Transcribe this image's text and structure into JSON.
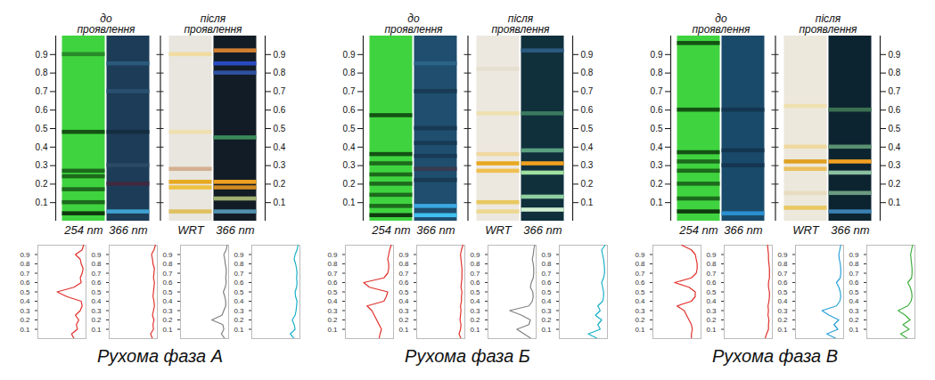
{
  "chart_data": [
    {
      "type": "plate",
      "ylim": [
        0,
        1
      ],
      "yticks": [
        0.1,
        0.2,
        0.3,
        0.4,
        0.5,
        0.6,
        0.7,
        0.8,
        0.9
      ],
      "groups": [
        {
          "label": "до проявлення",
          "lanes": [
            {
              "label": "254 nm",
              "color": "#3fd43f",
              "bands": [
                {
                  "rf": 0.9,
                  "color": "#2a8a2a"
                },
                {
                  "rf": 0.48,
                  "color": "#145214"
                },
                {
                  "rf": 0.27,
                  "color": "#1d6a1d"
                },
                {
                  "rf": 0.24,
                  "color": "#1d6a1d"
                },
                {
                  "rf": 0.17,
                  "color": "#1d6a1d"
                },
                {
                  "rf": 0.1,
                  "color": "#1d6a1d"
                },
                {
                  "rf": 0.04,
                  "color": "#0f3a0f"
                }
              ]
            },
            {
              "label": "366 nm",
              "color": "#1c3c58",
              "bands": [
                {
                  "rf": 0.85,
                  "color": "#2a5a7a"
                },
                {
                  "rf": 0.7,
                  "color": "#2a5070"
                },
                {
                  "rf": 0.48,
                  "color": "#142c40"
                },
                {
                  "rf": 0.3,
                  "color": "#2a4a66"
                },
                {
                  "rf": 0.2,
                  "color": "#402a40"
                },
                {
                  "rf": 0.05,
                  "color": "#3ea0d0"
                }
              ]
            }
          ]
        },
        {
          "label": "після проявлення",
          "lanes": [
            {
              "label": "WRT",
              "color": "#e8e6de",
              "bands": [
                {
                  "rf": 0.9,
                  "color": "#f0dca0"
                },
                {
                  "rf": 0.48,
                  "color": "#efe0b0"
                },
                {
                  "rf": 0.28,
                  "color": "#d4b090"
                },
                {
                  "rf": 0.21,
                  "color": "#e8a820"
                },
                {
                  "rf": 0.18,
                  "color": "#f0c040"
                },
                {
                  "rf": 0.05,
                  "color": "#e0c060"
                }
              ]
            },
            {
              "label": "366 nm",
              "color": "#121c26",
              "bands": [
                {
                  "rf": 0.92,
                  "color": "#d08030"
                },
                {
                  "rf": 0.85,
                  "color": "#2a4ac0"
                },
                {
                  "rf": 0.8,
                  "color": "#3050a0"
                },
                {
                  "rf": 0.45,
                  "color": "#3a8a5a"
                },
                {
                  "rf": 0.21,
                  "color": "#f0a020"
                },
                {
                  "rf": 0.18,
                  "color": "#d08a20"
                },
                {
                  "rf": 0.12,
                  "color": "#a0b070"
                },
                {
                  "rf": 0.05,
                  "color": "#5090b0"
                }
              ]
            }
          ]
        }
      ]
    },
    {
      "type": "line",
      "title": "Рухома фаза А",
      "tick_labels": "x",
      "x": [
        0,
        0.05,
        0.1,
        0.15,
        0.2,
        0.25,
        0.3,
        0.35,
        0.4,
        0.45,
        0.5,
        0.55,
        0.6,
        0.65,
        0.7,
        0.75,
        0.8,
        0.85,
        0.9,
        0.95,
        1
      ],
      "xlim": [
        0,
        1
      ],
      "xticks": [
        0.1,
        0.2,
        0.3,
        0.4,
        0.5,
        0.6,
        0.7,
        0.8,
        0.9
      ],
      "ylim": [
        0,
        100
      ],
      "series": [
        {
          "color": "#e0302a",
          "values": [
            25,
            30,
            18,
            20,
            15,
            22,
            12,
            8,
            10,
            40,
            60,
            25,
            10,
            12,
            8,
            6,
            10,
            12,
            22,
            8,
            5
          ]
        },
        {
          "color": "#e0302a",
          "values": [
            10,
            14,
            8,
            9,
            7,
            10,
            8,
            6,
            7,
            9,
            8,
            7,
            6,
            8,
            7,
            6,
            9,
            10,
            12,
            7,
            4
          ]
        },
        {
          "color": "#808080",
          "values": [
            8,
            15,
            10,
            12,
            35,
            14,
            10,
            6,
            6,
            8,
            11,
            7,
            5,
            6,
            5,
            5,
            7,
            8,
            10,
            5,
            3
          ]
        },
        {
          "color": "#18b0c8",
          "values": [
            12,
            20,
            10,
            12,
            16,
            10,
            8,
            7,
            6,
            9,
            10,
            7,
            6,
            7,
            6,
            7,
            9,
            12,
            10,
            6,
            4
          ]
        }
      ]
    },
    {
      "type": "plate",
      "ylim": [
        0,
        1
      ],
      "yticks": [
        0.1,
        0.2,
        0.3,
        0.4,
        0.5,
        0.6,
        0.7,
        0.8,
        0.9
      ],
      "groups": [
        {
          "label": "до проявлення",
          "lanes": [
            {
              "label": "254 nm",
              "color": "#3fd43f",
              "bands": [
                {
                  "rf": 0.57,
                  "color": "#145214"
                },
                {
                  "rf": 0.36,
                  "color": "#145214"
                },
                {
                  "rf": 0.31,
                  "color": "#1d6a1d"
                },
                {
                  "rf": 0.25,
                  "color": "#1d6a1d"
                },
                {
                  "rf": 0.2,
                  "color": "#1d6a1d"
                },
                {
                  "rf": 0.14,
                  "color": "#1d6a1d"
                },
                {
                  "rf": 0.08,
                  "color": "#1d6a1d"
                },
                {
                  "rf": 0.03,
                  "color": "#0f3a0f"
                }
              ]
            },
            {
              "label": "366 nm",
              "color": "#1f4e6e",
              "bands": [
                {
                  "rf": 0.85,
                  "color": "#2c6488"
                },
                {
                  "rf": 0.7,
                  "color": "#183a54"
                },
                {
                  "rf": 0.5,
                  "color": "#183a54"
                },
                {
                  "rf": 0.42,
                  "color": "#183a54"
                },
                {
                  "rf": 0.35,
                  "color": "#183a54"
                },
                {
                  "rf": 0.28,
                  "color": "#3a3a50"
                },
                {
                  "rf": 0.22,
                  "color": "#183a54"
                },
                {
                  "rf": 0.08,
                  "color": "#3aa8e0"
                },
                {
                  "rf": 0.03,
                  "color": "#40c0f0"
                }
              ]
            }
          ]
        },
        {
          "label": "після проявлення",
          "lanes": [
            {
              "label": "WRT",
              "color": "#ece8e0",
              "bands": [
                {
                  "rf": 0.82,
                  "color": "#e6e0d0"
                },
                {
                  "rf": 0.58,
                  "color": "#efe0b0"
                },
                {
                  "rf": 0.36,
                  "color": "#f0d8a0"
                },
                {
                  "rf": 0.31,
                  "color": "#e8a820"
                },
                {
                  "rf": 0.27,
                  "color": "#f0c050"
                },
                {
                  "rf": 0.1,
                  "color": "#e8c860"
                },
                {
                  "rf": 0.05,
                  "color": "#ecd890"
                }
              ]
            },
            {
              "label": "366 nm",
              "color": "#10303c",
              "bands": [
                {
                  "rf": 0.92,
                  "color": "#2a5a80"
                },
                {
                  "rf": 0.58,
                  "color": "#3a7a60"
                },
                {
                  "rf": 0.38,
                  "color": "#5aa080"
                },
                {
                  "rf": 0.31,
                  "color": "#f0a020"
                },
                {
                  "rf": 0.26,
                  "color": "#a0e0a0"
                },
                {
                  "rf": 0.13,
                  "color": "#90d0a0"
                },
                {
                  "rf": 0.06,
                  "color": "#d0f0d0"
                }
              ]
            }
          ]
        }
      ]
    },
    {
      "type": "line",
      "title": "Рухома фаза Б",
      "tick_labels": "x",
      "x": [
        0,
        0.05,
        0.1,
        0.15,
        0.2,
        0.25,
        0.3,
        0.35,
        0.4,
        0.45,
        0.5,
        0.55,
        0.6,
        0.65,
        0.7,
        0.75,
        0.8,
        0.85,
        0.9,
        0.95,
        1
      ],
      "xlim": [
        0,
        1
      ],
      "xticks": [
        0.1,
        0.2,
        0.3,
        0.4,
        0.5,
        0.6,
        0.7,
        0.8,
        0.9
      ],
      "ylim": [
        0,
        100
      ],
      "series": [
        {
          "color": "#e0302a",
          "values": [
            30,
            28,
            25,
            30,
            35,
            40,
            45,
            55,
            20,
            15,
            12,
            50,
            62,
            20,
            12,
            10,
            10,
            12,
            10,
            8,
            5
          ]
        },
        {
          "color": "#e0302a",
          "values": [
            8,
            12,
            9,
            8,
            10,
            9,
            8,
            9,
            7,
            7,
            6,
            8,
            7,
            6,
            6,
            6,
            7,
            8,
            9,
            7,
            4
          ]
        },
        {
          "color": "#808080",
          "values": [
            10,
            25,
            40,
            15,
            12,
            30,
            55,
            15,
            8,
            6,
            7,
            12,
            10,
            6,
            5,
            5,
            6,
            8,
            6,
            5,
            3
          ]
        },
        {
          "color": "#18b0c8",
          "values": [
            20,
            40,
            15,
            20,
            12,
            25,
            15,
            20,
            10,
            8,
            8,
            10,
            12,
            8,
            6,
            6,
            7,
            8,
            10,
            12,
            5
          ]
        }
      ]
    },
    {
      "type": "plate",
      "ylim": [
        0,
        1
      ],
      "yticks": [
        0.1,
        0.2,
        0.3,
        0.4,
        0.5,
        0.6,
        0.7,
        0.8,
        0.9
      ],
      "groups": [
        {
          "label": "до проявлення",
          "lanes": [
            {
              "label": "254 nm",
              "color": "#3fd43f",
              "bands": [
                {
                  "rf": 0.96,
                  "color": "#145214"
                },
                {
                  "rf": 0.6,
                  "color": "#145214"
                },
                {
                  "rf": 0.37,
                  "color": "#145214"
                },
                {
                  "rf": 0.32,
                  "color": "#1d6a1d"
                },
                {
                  "rf": 0.27,
                  "color": "#1d6a1d"
                },
                {
                  "rf": 0.2,
                  "color": "#1d6a1d"
                },
                {
                  "rf": 0.12,
                  "color": "#1d6a1d"
                },
                {
                  "rf": 0.05,
                  "color": "#0f3a0f"
                }
              ]
            },
            {
              "label": "366 nm",
              "color": "#1a4a6a",
              "bands": [
                {
                  "rf": 0.6,
                  "color": "#143650"
                },
                {
                  "rf": 0.38,
                  "color": "#143650"
                },
                {
                  "rf": 0.3,
                  "color": "#143650"
                },
                {
                  "rf": 0.04,
                  "color": "#2a90d0"
                }
              ]
            }
          ]
        },
        {
          "label": "після проявлення",
          "lanes": [
            {
              "label": "WRT",
              "color": "#ece8dc",
              "bands": [
                {
                  "rf": 0.62,
                  "color": "#efe0b0"
                },
                {
                  "rf": 0.4,
                  "color": "#f0d8a0"
                },
                {
                  "rf": 0.32,
                  "color": "#e0a020"
                },
                {
                  "rf": 0.28,
                  "color": "#ecc060"
                },
                {
                  "rf": 0.15,
                  "color": "#e8dcc0"
                },
                {
                  "rf": 0.07,
                  "color": "#e8c860"
                }
              ]
            },
            {
              "label": "366 nm",
              "color": "#0c2430",
              "bands": [
                {
                  "rf": 0.6,
                  "color": "#3a7050"
                },
                {
                  "rf": 0.4,
                  "color": "#5a9070"
                },
                {
                  "rf": 0.32,
                  "color": "#f0a020"
                },
                {
                  "rf": 0.26,
                  "color": "#8ac0a0"
                },
                {
                  "rf": 0.15,
                  "color": "#6a9a80"
                },
                {
                  "rf": 0.05,
                  "color": "#3a80b0"
                }
              ]
            }
          ]
        }
      ]
    },
    {
      "type": "line",
      "title": "Рухома фаза В",
      "tick_labels": "x",
      "x": [
        0,
        0.05,
        0.1,
        0.15,
        0.2,
        0.25,
        0.3,
        0.35,
        0.4,
        0.45,
        0.5,
        0.55,
        0.6,
        0.65,
        0.7,
        0.75,
        0.8,
        0.85,
        0.9,
        0.95,
        1
      ],
      "xlim": [
        0,
        1
      ],
      "xticks": [
        0.1,
        0.2,
        0.3,
        0.4,
        0.5,
        0.6,
        0.7,
        0.8,
        0.9
      ],
      "ylim": [
        0,
        100
      ],
      "series": [
        {
          "color": "#e0302a",
          "values": [
            20,
            20,
            18,
            20,
            25,
            30,
            35,
            50,
            20,
            12,
            12,
            25,
            55,
            20,
            10,
            8,
            8,
            10,
            12,
            20,
            40
          ]
        },
        {
          "color": "#e0302a",
          "values": [
            15,
            12,
            8,
            8,
            7,
            9,
            8,
            9,
            7,
            6,
            6,
            8,
            8,
            6,
            6,
            6,
            7,
            8,
            8,
            9,
            10
          ]
        },
        {
          "color": "#2aa0d8",
          "values": [
            15,
            35,
            12,
            20,
            10,
            30,
            45,
            15,
            8,
            6,
            7,
            10,
            15,
            7,
            6,
            6,
            7,
            9,
            10,
            8,
            6
          ]
        },
        {
          "color": "#40b040",
          "values": [
            15,
            30,
            12,
            25,
            10,
            20,
            35,
            15,
            8,
            6,
            7,
            10,
            15,
            7,
            6,
            6,
            7,
            8,
            9,
            7,
            5
          ]
        }
      ]
    }
  ]
}
